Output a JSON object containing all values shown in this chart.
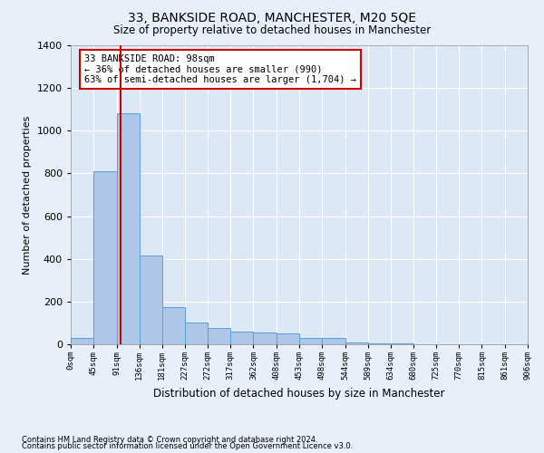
{
  "title1": "33, BANKSIDE ROAD, MANCHESTER, M20 5QE",
  "title2": "Size of property relative to detached houses in Manchester",
  "xlabel": "Distribution of detached houses by size in Manchester",
  "ylabel": "Number of detached properties",
  "footnote1": "Contains HM Land Registry data © Crown copyright and database right 2024.",
  "footnote2": "Contains public sector information licensed under the Open Government Licence v3.0.",
  "annotation_line1": "33 BANKSIDE ROAD: 98sqm",
  "annotation_line2": "← 36% of detached houses are smaller (990)",
  "annotation_line3": "63% of semi-detached houses are larger (1,704) →",
  "bar_edges": [
    0,
    45,
    91,
    136,
    181,
    227,
    272,
    317,
    362,
    408,
    453,
    498,
    544,
    589,
    634,
    680,
    725,
    770,
    815,
    861,
    906
  ],
  "bar_heights": [
    30,
    810,
    1080,
    415,
    175,
    100,
    75,
    60,
    55,
    50,
    30,
    30,
    10,
    5,
    3,
    1,
    1,
    1,
    0,
    0
  ],
  "bar_color": "#aec6e8",
  "bar_edge_color": "#5a9fd4",
  "vline_color": "#cc0000",
  "vline_x": 98,
  "ylim": [
    0,
    1400
  ],
  "xlim": [
    0,
    906
  ],
  "annotation_box_color": "#cc0000",
  "annotation_box_fill": "#ffffff",
  "bg_color": "#e8eff8",
  "plot_bg_color": "#dce8f5",
  "yticks": [
    0,
    200,
    400,
    600,
    800,
    1000,
    1200,
    1400
  ]
}
